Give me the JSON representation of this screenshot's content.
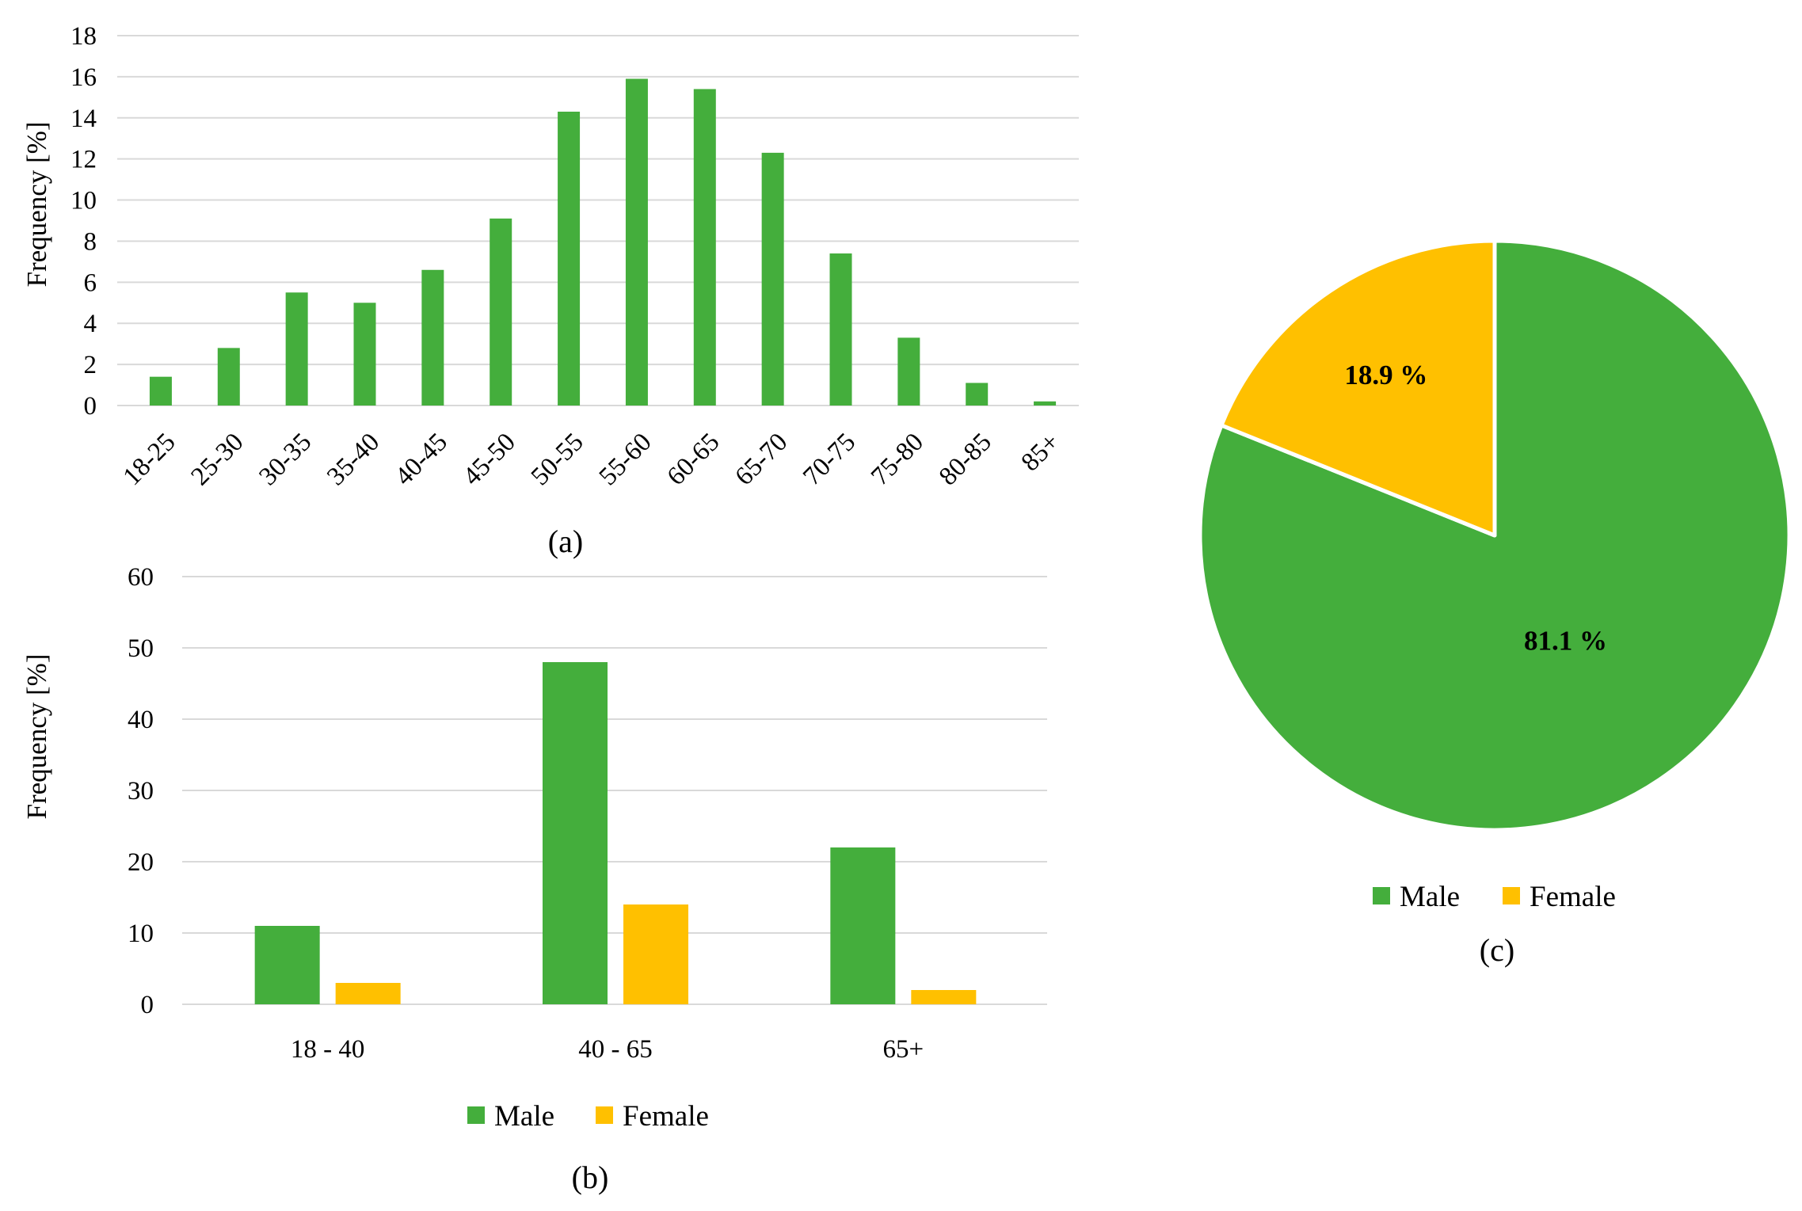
{
  "colors": {
    "male": "#44ae3c",
    "female": "#ffc000",
    "grid": "#d9d9d9"
  },
  "chart_data": [
    {
      "type": "bar",
      "caption": "(a)",
      "ylabel": "Frequency [%]",
      "ylim": [
        0,
        18
      ],
      "yticks": [
        0,
        2,
        4,
        6,
        8,
        10,
        12,
        14,
        16,
        18
      ],
      "categories": [
        "18-25",
        "25-30",
        "30-35",
        "35-40",
        "40-45",
        "45-50",
        "50-55",
        "55-60",
        "60-65",
        "65-70",
        "70-75",
        "75-80",
        "80-85",
        "85+"
      ],
      "values": [
        1.4,
        2.8,
        5.5,
        5.0,
        6.6,
        9.1,
        14.3,
        15.9,
        15.4,
        12.3,
        7.4,
        3.3,
        1.1,
        0.2
      ],
      "grid": true
    },
    {
      "type": "bar",
      "caption": "(b)",
      "ylabel": "Frequency [%]",
      "ylim": [
        0,
        60
      ],
      "yticks": [
        0,
        10,
        20,
        30,
        40,
        50,
        60
      ],
      "categories": [
        "18 - 40",
        "40 - 65",
        "65+"
      ],
      "series": [
        {
          "name": "Male",
          "values": [
            11,
            48,
            22
          ]
        },
        {
          "name": "Female",
          "values": [
            3,
            14,
            2
          ]
        }
      ],
      "grid": true,
      "legend": "bottom"
    },
    {
      "type": "pie",
      "caption": "(c)",
      "slices": [
        {
          "name": "Male",
          "value": 81.1,
          "label": "81.1 %"
        },
        {
          "name": "Female",
          "value": 18.9,
          "label": "18.9 %"
        }
      ],
      "legend": "bottom"
    }
  ]
}
